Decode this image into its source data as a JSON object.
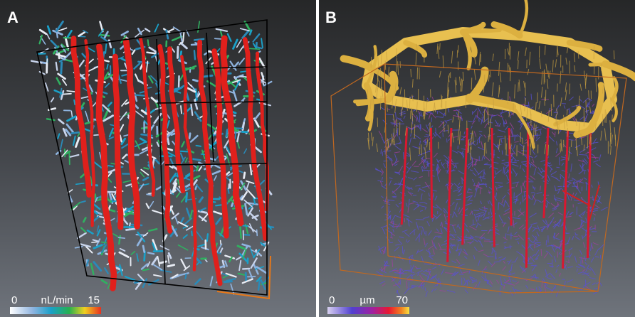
{
  "panels": [
    {
      "label": "A",
      "colorbar": {
        "min": "0",
        "unit": "nL/min",
        "max": "15"
      }
    },
    {
      "label": "B",
      "colorbar": {
        "min": "0",
        "unit": "µm",
        "max": "70"
      }
    }
  ]
}
